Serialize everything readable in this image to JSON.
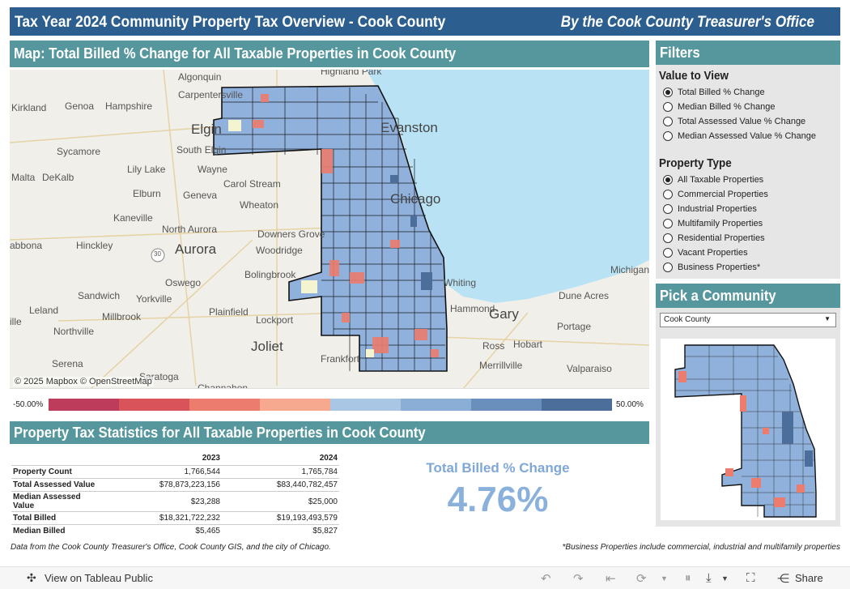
{
  "header": {
    "title": "Tax Year 2024 Community Property Tax Overview - Cook County",
    "byline": "By the Cook County Treasurer's Office"
  },
  "map_section": {
    "title": "Map: Total Billed % Change for All Taxable Properties in Cook County",
    "attribution": "© 2025 Mapbox © OpenStreetMap",
    "place_labels": [
      "Highland Park",
      "Algonquin",
      "Carpentersville",
      "Kirkland",
      "Genoa",
      "Hampshire",
      "Elgin",
      "Evanston",
      "Sycamore",
      "South Elgin",
      "Malta",
      "DeKalb",
      "Lily Lake",
      "Wayne",
      "Carol Stream",
      "Elburn",
      "Geneva",
      "Wheaton",
      "Chicago",
      "Kaneville",
      "North Aurora",
      "Downers Grove",
      "Aurora",
      "Woodridge",
      "Hinckley",
      "abbona",
      "Bolingbrook",
      "Michigan",
      "Sandwich",
      "Yorkville",
      "Oswego",
      "Whiting",
      "Dune Acres",
      "Leland",
      "Millbrook",
      "Plainfield",
      "Hammond",
      "Gary",
      "Portage",
      "Northville",
      "Lockport",
      "Joliet",
      "Ross",
      "Hobart",
      "Serena",
      "Frankfort",
      "Merrillville",
      "Valparaiso",
      "Saratoga",
      "Channahon",
      "ille"
    ],
    "route_shield": "30"
  },
  "legend": {
    "min_label": "-50.00%",
    "max_label": "50.00%",
    "colors": [
      "#bd3b5b",
      "#d9545a",
      "#ec7c6e",
      "#f6a98f",
      "#a9c6e4",
      "#8aaed6",
      "#6b8fbc",
      "#4b6f9a"
    ]
  },
  "filters": {
    "title": "Filters",
    "value_group": {
      "label": "Value to View",
      "options": [
        "Total Billed % Change",
        "Median Billed % Change",
        "Total Assessed Value % Change",
        "Median Assessed Value % Change"
      ],
      "selected": 0
    },
    "type_group": {
      "label": "Property Type",
      "options": [
        "All Taxable Properties",
        "Commercial Properties",
        "Industrial Properties",
        "Multifamily Properties",
        "Residential Properties",
        "Vacant Properties",
        "Business Properties*"
      ],
      "selected": 0
    }
  },
  "community": {
    "title": "Pick a Community",
    "selected": "Cook County"
  },
  "stats": {
    "title": "Property Tax Statistics for All Taxable Properties in Cook County",
    "columns": [
      "2023",
      "2024"
    ],
    "rows": [
      {
        "label": "Property Count",
        "v2023": "1,766,544",
        "v2024": "1,765,784"
      },
      {
        "label": "Total Assessed Value",
        "v2023": "$78,873,223,156",
        "v2024": "$83,440,782,457"
      },
      {
        "label": "Median Assessed Value",
        "v2023": "$23,288",
        "v2024": "$25,000"
      },
      {
        "label": "Total Billed",
        "v2023": "$18,321,722,232",
        "v2024": "$19,193,493,579"
      },
      {
        "label": "Median Billed",
        "v2023": "$5,465",
        "v2024": "$5,827"
      }
    ],
    "kpi_label": "Total Billed % Change",
    "kpi_value": "4.76%"
  },
  "footer": {
    "source": "Data from the Cook County Treasurer's Office, Cook County GIS, and the city of Chicago.",
    "note": "*Business Properties include commercial, industrial and multifamily properties"
  },
  "toolbar": {
    "view_label": "View on Tableau Public",
    "share_label": "Share"
  }
}
